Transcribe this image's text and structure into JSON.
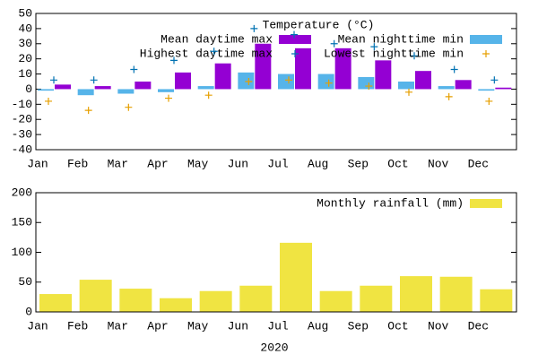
{
  "chart_data": [
    {
      "type": "bar",
      "title": "Temperature (°C)",
      "categories": [
        "Jan",
        "Feb",
        "Mar",
        "Apr",
        "May",
        "Jun",
        "Jul",
        "Aug",
        "Sep",
        "Oct",
        "Nov",
        "Dec"
      ],
      "series": [
        {
          "name": "Mean daytime max",
          "type": "bar",
          "color": "#9400d3",
          "values": [
            3,
            2,
            5,
            11,
            17,
            30,
            27,
            27,
            19,
            12,
            6,
            1
          ]
        },
        {
          "name": "Mean nighttime min",
          "type": "bar",
          "color": "#56b4e9",
          "values": [
            -1,
            -4,
            -3,
            -2,
            2,
            11,
            10,
            10,
            8,
            5,
            2,
            -1
          ]
        },
        {
          "name": "Highest daytime max",
          "type": "scatter",
          "color": "#0072b2",
          "values": [
            6,
            6,
            13,
            19,
            25,
            40,
            36,
            30,
            28,
            22,
            13,
            6
          ]
        },
        {
          "name": "Lowest nighttime min",
          "type": "scatter",
          "color": "#e69f00",
          "values": [
            -8,
            -14,
            -12,
            -6,
            -4,
            5,
            6,
            4,
            2,
            -2,
            -5,
            -8
          ]
        }
      ],
      "ylim": [
        -40,
        50
      ],
      "yticks": [
        -40,
        -30,
        -20,
        -10,
        0,
        10,
        20,
        30,
        40,
        50
      ]
    },
    {
      "type": "bar",
      "xlabel": "2020",
      "categories": [
        "Jan",
        "Feb",
        "Mar",
        "Apr",
        "May",
        "Jun",
        "Jul",
        "Aug",
        "Sep",
        "Oct",
        "Nov",
        "Dec"
      ],
      "series": [
        {
          "name": "Monthly rainfall (mm)",
          "type": "bar",
          "color": "#f0e442",
          "values": [
            30,
            54,
            39,
            23,
            35,
            44,
            116,
            35,
            44,
            60,
            59,
            38
          ]
        }
      ],
      "ylim": [
        0,
        200
      ],
      "yticks": [
        0,
        50,
        100,
        150,
        200
      ]
    }
  ]
}
